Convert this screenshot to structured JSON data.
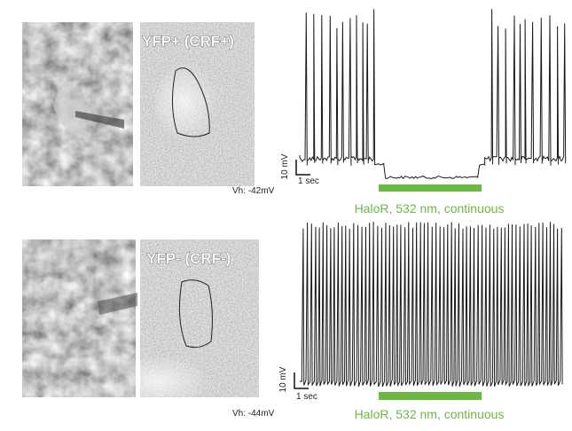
{
  "panels": [
    {
      "label": "YFP+ (CRF+)",
      "holding": "Vh: -42mV",
      "scale_y": "10 mV",
      "scale_x": "1 sec",
      "stimulus": "HaloR, 532 nm, continuous"
    },
    {
      "label": "YFP- (CRF-)",
      "holding": "Vh: -44mV",
      "scale_y": "10 mV",
      "scale_x": "1 sec",
      "stimulus": "HaloR, 532 nm, continuous"
    }
  ]
}
